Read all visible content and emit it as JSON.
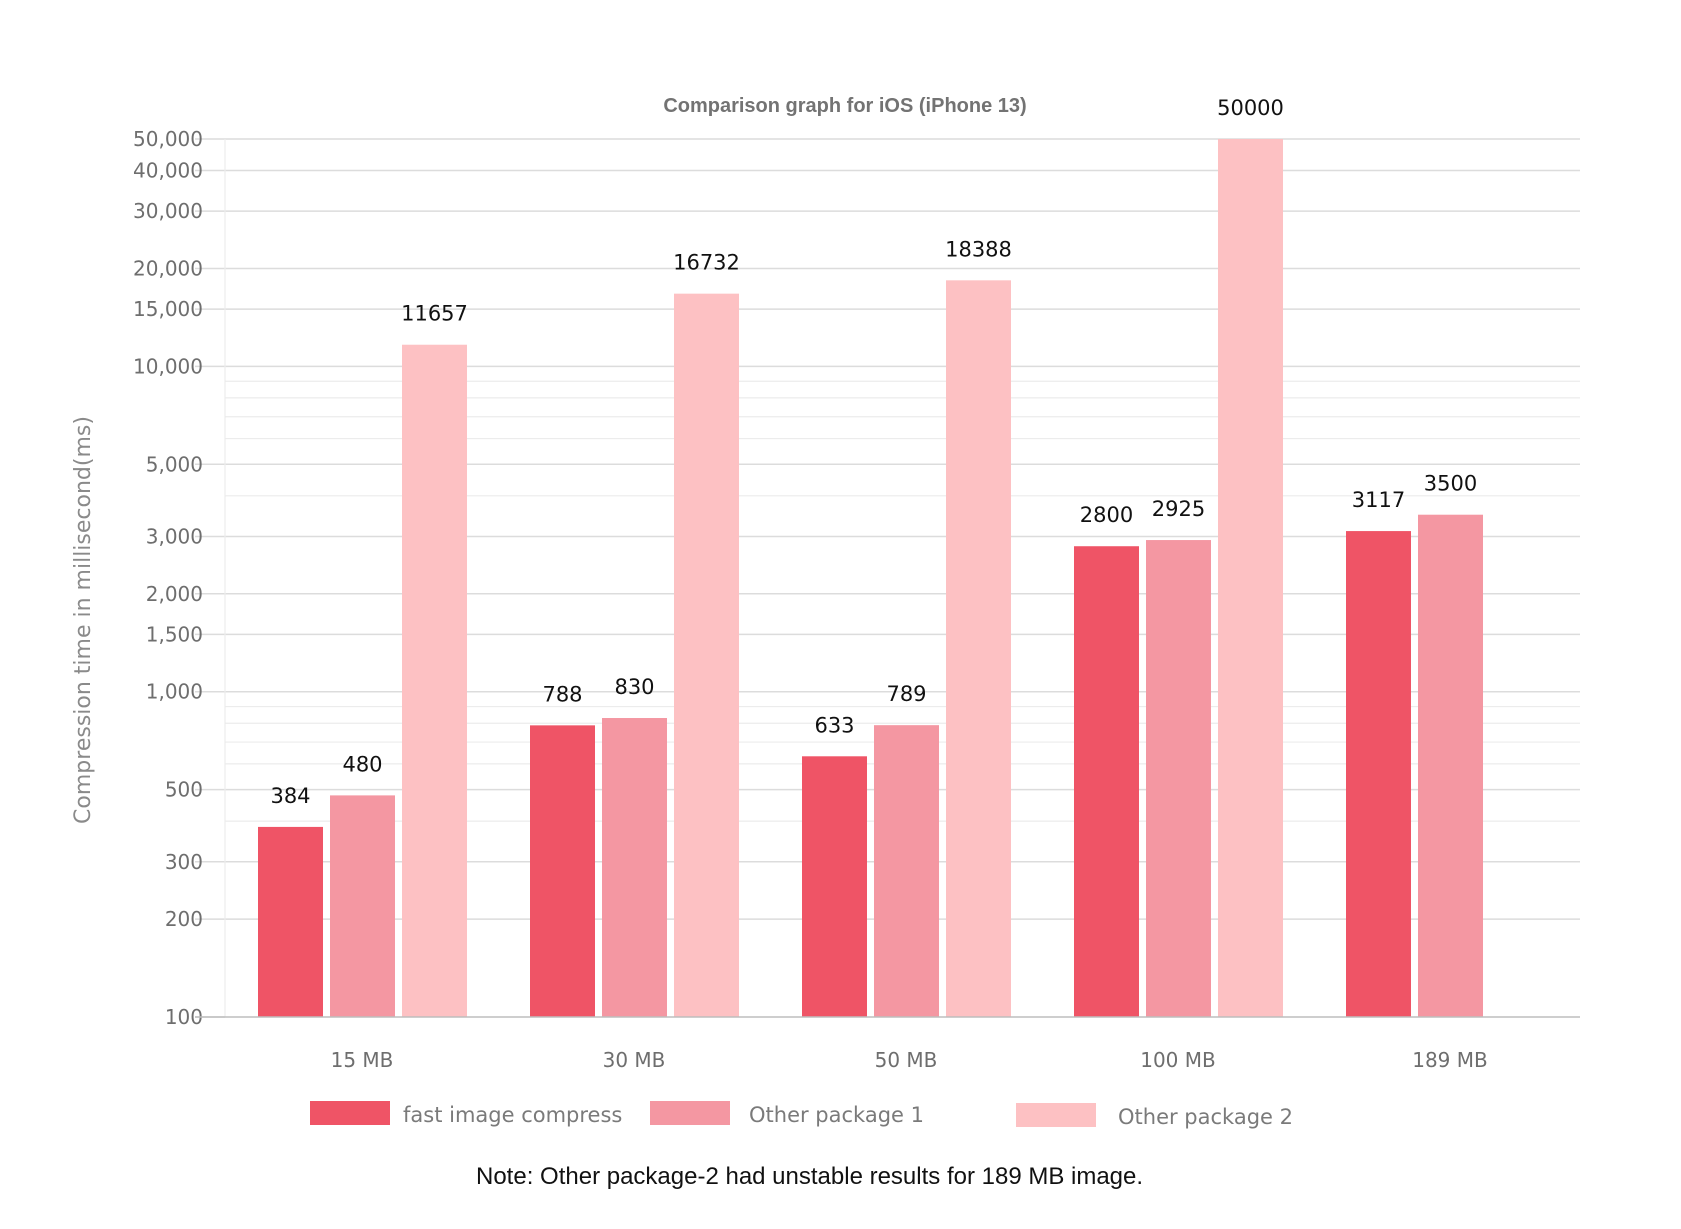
{
  "chart_data": {
    "type": "bar",
    "title": "Comparison graph for iOS (iPhone 13)",
    "ylabel": "Compression time in millisecond(ms)",
    "xlabel": "",
    "yscale": "log",
    "ylim": [
      100,
      50000
    ],
    "categories": [
      "15 MB",
      "30 MB",
      "50 MB",
      "100 MB",
      "189 MB"
    ],
    "series": [
      {
        "name": "fast image compress",
        "color": "#ef5466",
        "values": [
          384,
          788,
          633,
          2800,
          3117
        ]
      },
      {
        "name": "Other package 1",
        "color": "#f497a2",
        "values": [
          480,
          830,
          789,
          2925,
          3500
        ]
      },
      {
        "name": "Other package 2",
        "color": "#fdc1c3",
        "values": [
          11657,
          16732,
          18388,
          50000,
          null
        ]
      }
    ],
    "y_ticks": [
      {
        "value": 100,
        "label": "100"
      },
      {
        "value": 200,
        "label": "200"
      },
      {
        "value": 300,
        "label": "300"
      },
      {
        "value": 500,
        "label": "500"
      },
      {
        "value": 1000,
        "label": "1,000"
      },
      {
        "value": 1500,
        "label": "1,500"
      },
      {
        "value": 2000,
        "label": "2,000"
      },
      {
        "value": 3000,
        "label": "3,000"
      },
      {
        "value": 5000,
        "label": "5,000"
      },
      {
        "value": 10000,
        "label": "10,000"
      },
      {
        "value": 15000,
        "label": "15,000"
      },
      {
        "value": 20000,
        "label": "20,000"
      },
      {
        "value": 30000,
        "label": "30,000"
      },
      {
        "value": 40000,
        "label": "40,000"
      },
      {
        "value": 50000,
        "label": "50,000"
      }
    ],
    "minor_gridlines": [
      400,
      600,
      700,
      800,
      900,
      4000,
      6000,
      7000,
      8000,
      9000
    ],
    "grid": true,
    "legend_position": "bottom",
    "note": "Note: Other package-2 had unstable results for 189 MB image."
  }
}
